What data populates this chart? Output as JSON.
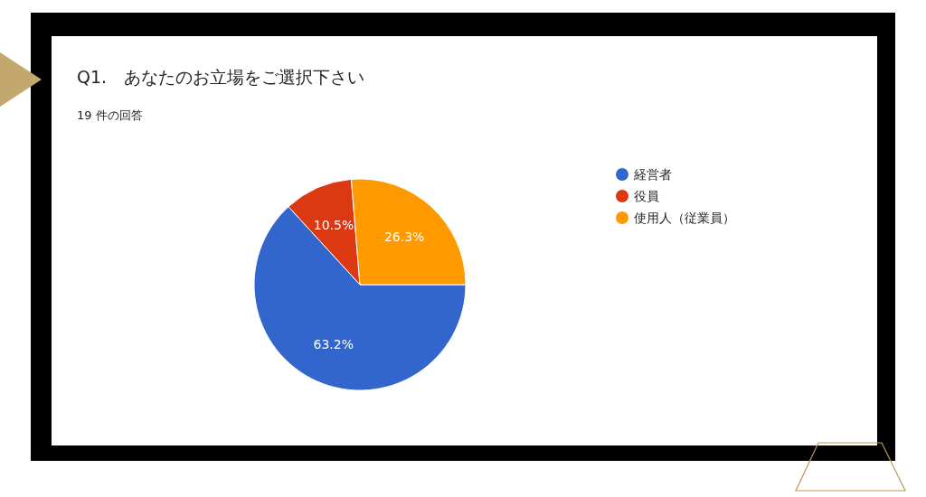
{
  "chart_data": {
    "type": "pie",
    "title": "Q1.　あなたのお立場をご選択下さい",
    "subtitle": "19 件の回答",
    "categories": [
      "経営者",
      "役員",
      "使用人（従業員）"
    ],
    "values": [
      63.2,
      10.5,
      26.3
    ],
    "colors": [
      "#3366cc",
      "#dc3912",
      "#ff9900"
    ],
    "value_labels": [
      "63.2%",
      "10.5%",
      "26.3%"
    ],
    "legend": "right"
  }
}
